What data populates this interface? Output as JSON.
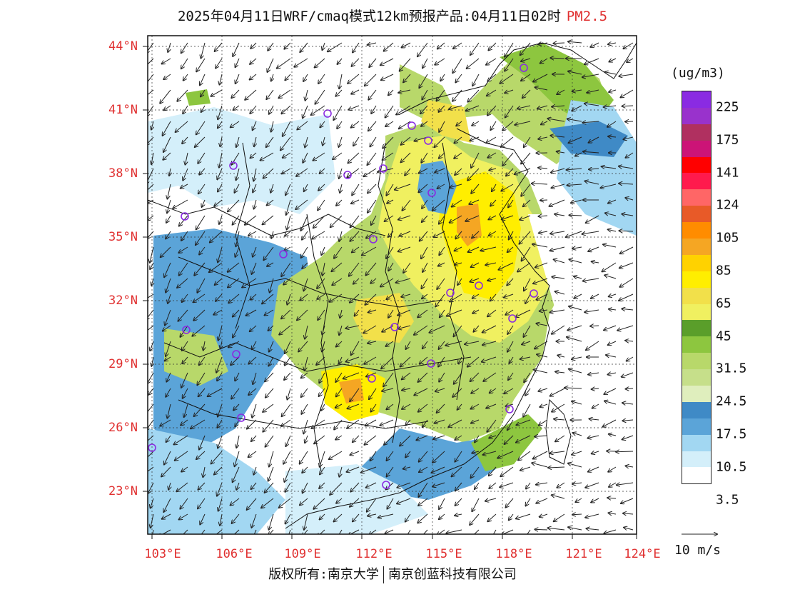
{
  "title": {
    "main": "2025年04月11日WRF/cmaq模式12km预报产品:04月11日02时",
    "pollutant": "PM2.5"
  },
  "axes": {
    "lat_labels": [
      "44°N",
      "41°N",
      "38°N",
      "35°N",
      "32°N",
      "29°N",
      "26°N",
      "23°N"
    ],
    "lon_labels": [
      "103°E",
      "106°E",
      "109°E",
      "112°E",
      "115°E",
      "118°E",
      "121°E",
      "124°E"
    ]
  },
  "legend": {
    "unit": "(ug/m3)",
    "colors": [
      "#8a2be2",
      "#9932cc",
      "#b03060",
      "#cc1477",
      "#ff0000",
      "#ff1a4d",
      "#ff6666",
      "#e85a28",
      "#ff8c00",
      "#f5a623",
      "#ffd200",
      "#ffee00",
      "#f2e04a",
      "#f0f060",
      "#5a9e2a",
      "#8dc63f",
      "#b8d86a",
      "#c6df8a",
      "#dfeebd",
      "#3f8ac6",
      "#5ba4d8",
      "#a2d7f2",
      "#d4effa",
      "#ffffff"
    ],
    "labels": [
      "225",
      "175",
      "141",
      "124",
      "105",
      "85",
      "65",
      "45",
      "31.5",
      "24.5",
      "17.5",
      "10.5",
      "3.5"
    ],
    "vector_label": "10 m/s"
  },
  "footer": {
    "left": "版权所有:南京大学",
    "right": "南京创蓝科技有限公司"
  },
  "stations": 24
}
